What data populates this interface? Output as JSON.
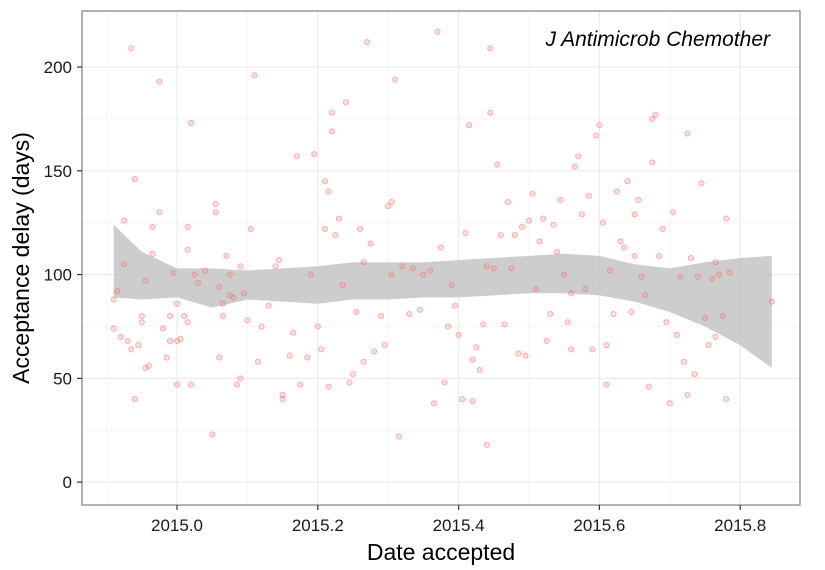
{
  "chart_data": {
    "type": "scatter",
    "title": "",
    "annotation": "J Antimicrob Chemother",
    "xlabel": "Date accepted",
    "ylabel": "Acceptance delay (days)",
    "xlim": [
      2014.865,
      2015.885
    ],
    "ylim": [
      -11,
      227
    ],
    "x_ticks": [
      2015.0,
      2015.2,
      2015.4,
      2015.6,
      2015.8
    ],
    "x_tick_labels": [
      "2015.0",
      "2015.2",
      "2015.4",
      "2015.6",
      "2015.8"
    ],
    "y_ticks": [
      0,
      50,
      100,
      150,
      200
    ],
    "y_tick_labels": [
      "0",
      "50",
      "100",
      "150",
      "200"
    ],
    "grid": true,
    "colors": {
      "points": "#f8766d",
      "band": "#c8c8c8",
      "panel_border": "#7f7f7f",
      "grid_major": "#ebebeb",
      "grid_minor": "#f5f5f5"
    },
    "points": [
      [
        2014.91,
        74
      ],
      [
        2014.91,
        88
      ],
      [
        2014.915,
        92
      ],
      [
        2014.92,
        70
      ],
      [
        2014.925,
        105
      ],
      [
        2014.925,
        126
      ],
      [
        2014.93,
        68
      ],
      [
        2014.935,
        64
      ],
      [
        2014.935,
        209
      ],
      [
        2014.94,
        146
      ],
      [
        2014.94,
        40
      ],
      [
        2014.945,
        66
      ],
      [
        2014.95,
        77
      ],
      [
        2014.95,
        80
      ],
      [
        2014.955,
        97
      ],
      [
        2014.955,
        55
      ],
      [
        2014.96,
        56
      ],
      [
        2014.965,
        123
      ],
      [
        2014.965,
        110
      ],
      [
        2014.975,
        130
      ],
      [
        2014.975,
        193
      ],
      [
        2014.98,
        74
      ],
      [
        2014.985,
        60
      ],
      [
        2014.99,
        80
      ],
      [
        2014.99,
        68
      ],
      [
        2014.995,
        101
      ],
      [
        2015.0,
        47
      ],
      [
        2015.0,
        86
      ],
      [
        2015.0,
        68
      ],
      [
        2015.005,
        69
      ],
      [
        2015.01,
        80
      ],
      [
        2015.015,
        123
      ],
      [
        2015.015,
        112
      ],
      [
        2015.015,
        77
      ],
      [
        2015.02,
        47
      ],
      [
        2015.02,
        173
      ],
      [
        2015.025,
        100
      ],
      [
        2015.03,
        96
      ],
      [
        2015.04,
        102
      ],
      [
        2015.05,
        23
      ],
      [
        2015.055,
        134
      ],
      [
        2015.055,
        130
      ],
      [
        2015.06,
        94
      ],
      [
        2015.06,
        60
      ],
      [
        2015.065,
        86
      ],
      [
        2015.065,
        80
      ],
      [
        2015.07,
        109
      ],
      [
        2015.075,
        100
      ],
      [
        2015.075,
        90
      ],
      [
        2015.08,
        89
      ],
      [
        2015.085,
        47
      ],
      [
        2015.09,
        104
      ],
      [
        2015.09,
        50
      ],
      [
        2015.095,
        91
      ],
      [
        2015.1,
        78
      ],
      [
        2015.105,
        122
      ],
      [
        2015.11,
        196
      ],
      [
        2015.115,
        58
      ],
      [
        2015.12,
        75
      ],
      [
        2015.13,
        85
      ],
      [
        2015.14,
        104
      ],
      [
        2015.145,
        107
      ],
      [
        2015.15,
        40
      ],
      [
        2015.15,
        42
      ],
      [
        2015.16,
        61
      ],
      [
        2015.165,
        72
      ],
      [
        2015.17,
        157
      ],
      [
        2015.175,
        47
      ],
      [
        2015.185,
        60
      ],
      [
        2015.19,
        100
      ],
      [
        2015.195,
        158
      ],
      [
        2015.2,
        75
      ],
      [
        2015.205,
        64
      ],
      [
        2015.21,
        145
      ],
      [
        2015.21,
        122
      ],
      [
        2015.215,
        140
      ],
      [
        2015.215,
        46
      ],
      [
        2015.22,
        169
      ],
      [
        2015.22,
        178
      ],
      [
        2015.225,
        119
      ],
      [
        2015.23,
        127
      ],
      [
        2015.235,
        95
      ],
      [
        2015.24,
        183
      ],
      [
        2015.245,
        48
      ],
      [
        2015.25,
        52
      ],
      [
        2015.255,
        82
      ],
      [
        2015.26,
        122
      ],
      [
        2015.265,
        106
      ],
      [
        2015.265,
        58
      ],
      [
        2015.27,
        212
      ],
      [
        2015.275,
        115
      ],
      [
        2015.28,
        63
      ],
      [
        2015.29,
        80
      ],
      [
        2015.295,
        66
      ],
      [
        2015.3,
        133
      ],
      [
        2015.305,
        135
      ],
      [
        2015.305,
        100
      ],
      [
        2015.31,
        194
      ],
      [
        2015.315,
        22
      ],
      [
        2015.32,
        104
      ],
      [
        2015.33,
        81
      ],
      [
        2015.335,
        103
      ],
      [
        2015.345,
        83
      ],
      [
        2015.35,
        100
      ],
      [
        2015.36,
        102
      ],
      [
        2015.365,
        38
      ],
      [
        2015.37,
        217
      ],
      [
        2015.375,
        113
      ],
      [
        2015.38,
        48
      ],
      [
        2015.385,
        75
      ],
      [
        2015.39,
        95
      ],
      [
        2015.395,
        85
      ],
      [
        2015.4,
        71
      ],
      [
        2015.405,
        40
      ],
      [
        2015.41,
        120
      ],
      [
        2015.415,
        172
      ],
      [
        2015.42,
        39
      ],
      [
        2015.42,
        59
      ],
      [
        2015.425,
        65
      ],
      [
        2015.43,
        54
      ],
      [
        2015.435,
        76
      ],
      [
        2015.44,
        104
      ],
      [
        2015.44,
        18
      ],
      [
        2015.445,
        209
      ],
      [
        2015.445,
        178
      ],
      [
        2015.45,
        103
      ],
      [
        2015.455,
        153
      ],
      [
        2015.46,
        119
      ],
      [
        2015.465,
        76
      ],
      [
        2015.47,
        135
      ],
      [
        2015.475,
        103
      ],
      [
        2015.48,
        119
      ],
      [
        2015.485,
        62
      ],
      [
        2015.49,
        123
      ],
      [
        2015.495,
        61
      ],
      [
        2015.5,
        126
      ],
      [
        2015.505,
        139
      ],
      [
        2015.51,
        93
      ],
      [
        2015.515,
        116
      ],
      [
        2015.52,
        127
      ],
      [
        2015.525,
        68
      ],
      [
        2015.53,
        81
      ],
      [
        2015.535,
        124
      ],
      [
        2015.54,
        111
      ],
      [
        2015.545,
        136
      ],
      [
        2015.55,
        100
      ],
      [
        2015.555,
        77
      ],
      [
        2015.56,
        64
      ],
      [
        2015.56,
        91
      ],
      [
        2015.565,
        152
      ],
      [
        2015.57,
        157
      ],
      [
        2015.575,
        129
      ],
      [
        2015.58,
        93
      ],
      [
        2015.585,
        138
      ],
      [
        2015.59,
        64
      ],
      [
        2015.595,
        167
      ],
      [
        2015.6,
        172
      ],
      [
        2015.605,
        125
      ],
      [
        2015.61,
        66
      ],
      [
        2015.61,
        47
      ],
      [
        2015.615,
        102
      ],
      [
        2015.62,
        81
      ],
      [
        2015.625,
        140
      ],
      [
        2015.63,
        116
      ],
      [
        2015.635,
        113
      ],
      [
        2015.64,
        145
      ],
      [
        2015.645,
        82
      ],
      [
        2015.65,
        129
      ],
      [
        2015.65,
        109
      ],
      [
        2015.655,
        136
      ],
      [
        2015.66,
        99
      ],
      [
        2015.665,
        90
      ],
      [
        2015.67,
        46
      ],
      [
        2015.675,
        154
      ],
      [
        2015.675,
        175
      ],
      [
        2015.68,
        177
      ],
      [
        2015.685,
        109
      ],
      [
        2015.69,
        122
      ],
      [
        2015.695,
        77
      ],
      [
        2015.7,
        38
      ],
      [
        2015.705,
        130
      ],
      [
        2015.71,
        71
      ],
      [
        2015.715,
        99
      ],
      [
        2015.72,
        58
      ],
      [
        2015.725,
        168
      ],
      [
        2015.725,
        42
      ],
      [
        2015.73,
        108
      ],
      [
        2015.735,
        52
      ],
      [
        2015.74,
        99
      ],
      [
        2015.745,
        144
      ],
      [
        2015.75,
        79
      ],
      [
        2015.755,
        66
      ],
      [
        2015.76,
        98
      ],
      [
        2015.765,
        106
      ],
      [
        2015.765,
        70
      ],
      [
        2015.77,
        100
      ],
      [
        2015.775,
        80
      ],
      [
        2015.78,
        127
      ],
      [
        2015.78,
        40
      ],
      [
        2015.785,
        101
      ],
      [
        2015.845,
        87
      ]
    ],
    "smooth_band": {
      "x": [
        2014.91,
        2014.95,
        2015.0,
        2015.05,
        2015.1,
        2015.15,
        2015.2,
        2015.25,
        2015.3,
        2015.35,
        2015.4,
        2015.45,
        2015.5,
        2015.55,
        2015.6,
        2015.65,
        2015.7,
        2015.75,
        2015.8,
        2015.845
      ],
      "lower": [
        89,
        88,
        89,
        84,
        88,
        87,
        86,
        88,
        88,
        89,
        89,
        90,
        91,
        91,
        90,
        87,
        82,
        75,
        66,
        55
      ],
      "upper": [
        124,
        111,
        103,
        103,
        102,
        103,
        104,
        106,
        106,
        106,
        107,
        108,
        109,
        110,
        109,
        105,
        103,
        106,
        108,
        109
      ]
    }
  }
}
